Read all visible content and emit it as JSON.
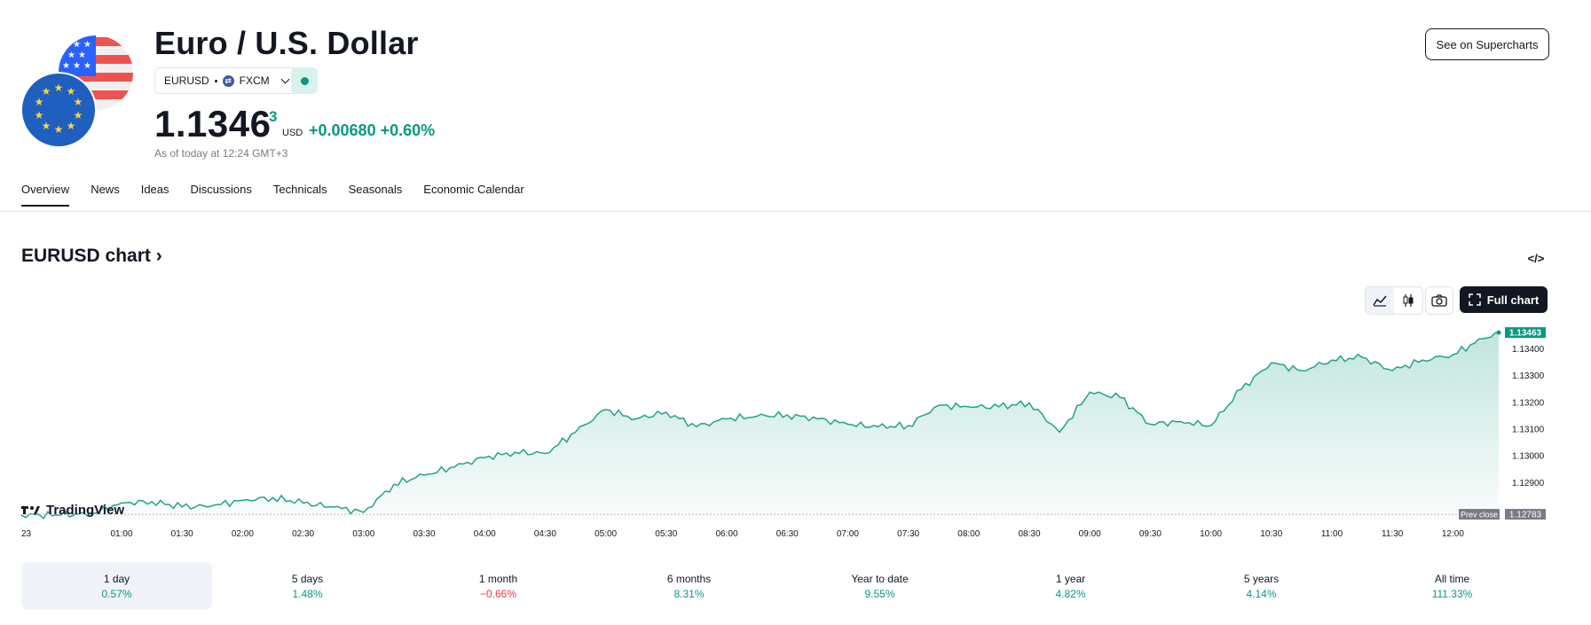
{
  "header": {
    "title": "Euro / U.S. Dollar",
    "symbol": "EURUSD",
    "exchange": "FXCM",
    "price_main": "1.1346",
    "price_superscript": "3",
    "currency": "USD",
    "change": "+0.00680 +0.60%",
    "as_of": "As of today at 12:24 GMT+3",
    "supercharts_button": "See on Supercharts",
    "status": "market open"
  },
  "tabs": [
    "Overview",
    "News",
    "Ideas",
    "Discussions",
    "Technicals",
    "Seasonals",
    "Economic Calendar"
  ],
  "active_tab": "Overview",
  "chart_section": {
    "title": "EURUSD chart ›",
    "full_chart_label": "Full chart",
    "watermark": "TradingView"
  },
  "colors": {
    "line": "#22a38a",
    "positive": "#089981",
    "negative": "#f23645",
    "text": "#131722",
    "prev_close_tag": "#787b86"
  },
  "icons": [
    "us-flag-icon",
    "eu-flag-icon",
    "fxcm-logo-icon",
    "chevron-down-icon",
    "embed-code-icon",
    "area-chart-icon",
    "candles-icon",
    "camera-icon",
    "fullscreen-icon",
    "tradingview-logo-icon"
  ],
  "chart_data": {
    "type": "area",
    "x_tick_labels": [
      "23",
      "01:00",
      "01:30",
      "02:00",
      "02:30",
      "03:00",
      "03:30",
      "04:00",
      "04:30",
      "05:00",
      "05:30",
      "06:00",
      "06:30",
      "07:00",
      "07:30",
      "08:00",
      "08:30",
      "09:00",
      "09:30",
      "10:00",
      "10:30",
      "11:00",
      "11:30",
      "12:00"
    ],
    "y_tick_labels": [
      "1.13400",
      "1.13300",
      "1.13200",
      "1.13100",
      "1.13000",
      "1.12900"
    ],
    "ylim": [
      1.1276,
      1.1347
    ],
    "last_price_label": "1.13463",
    "last_price": 1.13463,
    "prev_close_label": "Prev close",
    "prev_close_value": "1.12783",
    "prev_close": 1.12783,
    "series": [
      {
        "x": [
          "00:30",
          "00:45",
          "01:00",
          "01:15",
          "01:30",
          "01:45",
          "02:00",
          "02:15",
          "02:30",
          "02:45",
          "03:00",
          "03:15",
          "03:30",
          "03:45",
          "04:00",
          "04:15",
          "04:30",
          "04:45",
          "05:00",
          "05:15",
          "05:30",
          "05:45",
          "06:00",
          "06:15",
          "06:30",
          "06:45",
          "07:00",
          "07:15",
          "07:30",
          "07:45",
          "08:00",
          "08:15",
          "08:30",
          "08:45",
          "09:00",
          "09:15",
          "09:30",
          "09:45",
          "10:00",
          "10:15",
          "10:30",
          "10:45",
          "11:00",
          "11:15",
          "11:30",
          "11:45",
          "12:00",
          "12:15",
          "12:24"
        ],
        "values": [
          1.1278,
          1.12785,
          1.12825,
          1.1283,
          1.1281,
          1.12815,
          1.12835,
          1.12845,
          1.12825,
          1.1281,
          1.1279,
          1.12895,
          1.1293,
          1.1296,
          1.12995,
          1.13015,
          1.1301,
          1.1309,
          1.13175,
          1.1314,
          1.13165,
          1.1311,
          1.1314,
          1.1315,
          1.13155,
          1.1314,
          1.1312,
          1.1311,
          1.13115,
          1.1319,
          1.13185,
          1.13185,
          1.132,
          1.1309,
          1.1324,
          1.1322,
          1.1312,
          1.1313,
          1.13115,
          1.1325,
          1.1335,
          1.1332,
          1.1336,
          1.1337,
          1.1332,
          1.1336,
          1.1338,
          1.1344,
          1.13463
        ]
      }
    ]
  },
  "periods": [
    {
      "label": "1 day",
      "value": "0.57%",
      "sign": "pos"
    },
    {
      "label": "5 days",
      "value": "1.48%",
      "sign": "pos"
    },
    {
      "label": "1 month",
      "value": "−0.66%",
      "sign": "neg"
    },
    {
      "label": "6 months",
      "value": "8.31%",
      "sign": "pos"
    },
    {
      "label": "Year to date",
      "value": "9.55%",
      "sign": "pos"
    },
    {
      "label": "1 year",
      "value": "4.82%",
      "sign": "pos"
    },
    {
      "label": "5 years",
      "value": "4.14%",
      "sign": "pos"
    },
    {
      "label": "All time",
      "value": "111.33%",
      "sign": "pos"
    }
  ],
  "active_period": "1 day"
}
